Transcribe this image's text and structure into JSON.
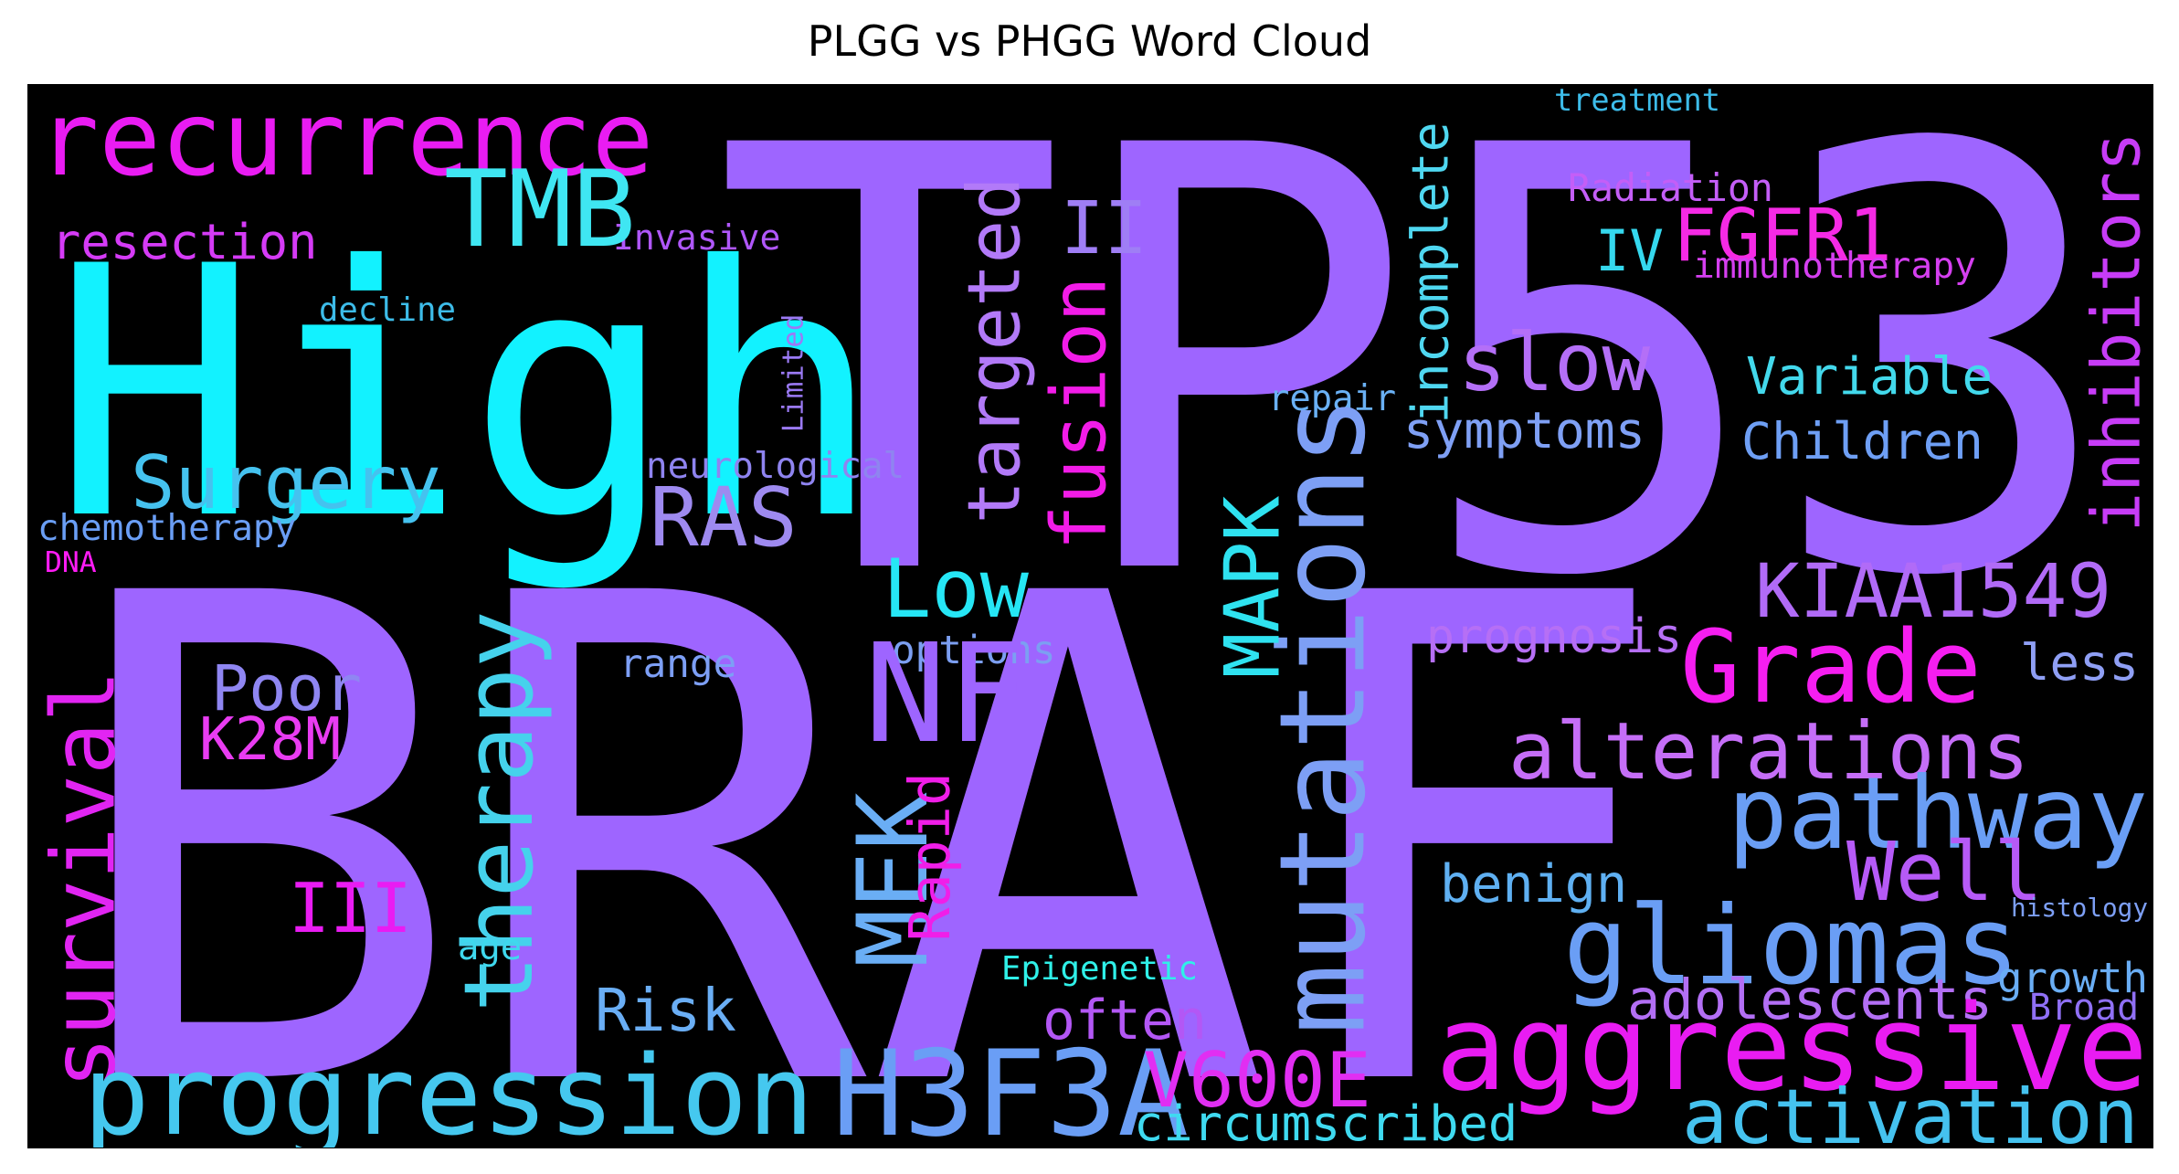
{
  "title": "PLGG vs PHGG Word Cloud",
  "palette": {
    "purple": "#9e65ff",
    "cyan": "#12f2ff",
    "magenta": "#e91cf2",
    "blue": "#6a9ef5",
    "sky": "#3fc8f0",
    "violet": "#b957ff",
    "pink": "#ff1cf5",
    "teal": "#4de0e8"
  },
  "words": [
    {
      "id": "braf",
      "text": "BRAF",
      "color": "#9e65ff"
    },
    {
      "id": "tp53",
      "text": "TP53",
      "color": "#9e65ff"
    },
    {
      "id": "high",
      "text": "High",
      "color": "#12f2ff"
    },
    {
      "id": "recurrence",
      "text": "recurrence",
      "color": "#e91cf2"
    },
    {
      "id": "resection",
      "text": "resection",
      "color": "#d53bf6"
    },
    {
      "id": "invasive",
      "text": "Invasive",
      "color": "#b057fb"
    },
    {
      "id": "treatment",
      "text": "treatment",
      "color": "#3dbce9"
    },
    {
      "id": "tmb",
      "text": "TMB",
      "color": "#3fe6f2"
    },
    {
      "id": "decline",
      "text": "decline",
      "color": "#3dbce9"
    },
    {
      "id": "surgery",
      "text": "Surgery",
      "color": "#45c2ef"
    },
    {
      "id": "limited",
      "text": "Limited",
      "color": "#9b7af5"
    },
    {
      "id": "neurological",
      "text": "neurological",
      "color": "#8f84f0"
    },
    {
      "id": "chemotherapy",
      "text": "chemotherapy",
      "color": "#6a9ef5"
    },
    {
      "id": "dna",
      "text": "DNA",
      "color": "#ff1cf5"
    },
    {
      "id": "ras",
      "text": "RAS",
      "color": "#9e8af0"
    },
    {
      "id": "targeted",
      "text": "targeted",
      "color": "#b27af8"
    },
    {
      "id": "ii",
      "text": "II",
      "color": "#9f7ef5"
    },
    {
      "id": "fusion",
      "text": "fusion",
      "color": "#f21ce8"
    },
    {
      "id": "incomplete",
      "text": "incomplete",
      "color": "#4fd7f0"
    },
    {
      "id": "radiation",
      "text": "Radiation",
      "color": "#c45ef7"
    },
    {
      "id": "iv",
      "text": "IV",
      "color": "#35d8ee"
    },
    {
      "id": "fgfr1",
      "text": "FGFR1",
      "color": "#f52ae5"
    },
    {
      "id": "immunotherapy",
      "text": "immunotherapy",
      "color": "#d53ff0"
    },
    {
      "id": "inhibitors",
      "text": "inhibitors",
      "color": "#c73cf7"
    },
    {
      "id": "slow",
      "text": "slow",
      "color": "#b46ff7"
    },
    {
      "id": "variable",
      "text": "Variable",
      "color": "#43d9ec"
    },
    {
      "id": "repair",
      "text": "repair",
      "color": "#6ab1f5"
    },
    {
      "id": "symptoms",
      "text": "symptoms",
      "color": "#7fa0f5"
    },
    {
      "id": "children",
      "text": "Children",
      "color": "#6e9ff5"
    },
    {
      "id": "mutations",
      "text": "mutations",
      "color": "#7d9ff5"
    },
    {
      "id": "mapk",
      "text": "MAPK",
      "color": "#2fe2f0"
    },
    {
      "id": "low",
      "text": "Low",
      "color": "#26e6f5"
    },
    {
      "id": "kiaa1549",
      "text": "KIAA1549",
      "color": "#b16bf7"
    },
    {
      "id": "therapy",
      "text": "therapy",
      "color": "#45d2ec"
    },
    {
      "id": "survival",
      "text": "survival",
      "color": "#e125f2"
    },
    {
      "id": "poor",
      "text": "Poor",
      "color": "#8f86f2"
    },
    {
      "id": "k28m",
      "text": "K28M",
      "color": "#e93cf2"
    },
    {
      "id": "range",
      "text": "range",
      "color": "#7d9ff5"
    },
    {
      "id": "options",
      "text": "options",
      "color": "#7c9ff2"
    },
    {
      "id": "nf",
      "text": "NF",
      "color": "#9e65ff"
    },
    {
      "id": "prognosis",
      "text": "prognosis",
      "color": "#b66ff5"
    },
    {
      "id": "grade",
      "text": "Grade",
      "color": "#f51ef0"
    },
    {
      "id": "less",
      "text": "less",
      "color": "#8f9ff5"
    },
    {
      "id": "alterations",
      "text": "alterations",
      "color": "#c56ef7"
    },
    {
      "id": "mek",
      "text": "MEK",
      "color": "#6aaef5"
    },
    {
      "id": "rapid",
      "text": "Rapid",
      "color": "#f01ee8"
    },
    {
      "id": "pathway",
      "text": "pathway",
      "color": "#6a9ef5"
    },
    {
      "id": "well",
      "text": "Well",
      "color": "#b65af7"
    },
    {
      "id": "benign",
      "text": "benign",
      "color": "#5fb0f2"
    },
    {
      "id": "iii",
      "text": "III",
      "color": "#e91cf2"
    },
    {
      "id": "gliomas",
      "text": "gliomas",
      "color": "#6a9ef5"
    },
    {
      "id": "histology",
      "text": "histology",
      "color": "#7d9ff5"
    },
    {
      "id": "age",
      "text": "age",
      "color": "#3fd8ee"
    },
    {
      "id": "epigenetic",
      "text": "Epigenetic",
      "color": "#2ff0e8"
    },
    {
      "id": "growth",
      "text": "growth",
      "color": "#6aaef5"
    },
    {
      "id": "risk",
      "text": "Risk",
      "color": "#6aaef5"
    },
    {
      "id": "adolescents",
      "text": "adolescents",
      "color": "#b36ff5"
    },
    {
      "id": "often",
      "text": "often",
      "color": "#b357f5"
    },
    {
      "id": "broad",
      "text": "Broad",
      "color": "#9070f5"
    },
    {
      "id": "aggressive",
      "text": "aggressive",
      "color": "#e91cf2"
    },
    {
      "id": "progression",
      "text": "progression",
      "color": "#45c8ef"
    },
    {
      "id": "h3f3a",
      "text": "H3F3A",
      "color": "#6a9ef5"
    },
    {
      "id": "v600e",
      "text": "V600E",
      "color": "#e12ef2"
    },
    {
      "id": "circumscribed",
      "text": "circumscribed",
      "color": "#3fdaf0"
    },
    {
      "id": "activation",
      "text": "activation",
      "color": "#45c2ef"
    }
  ]
}
